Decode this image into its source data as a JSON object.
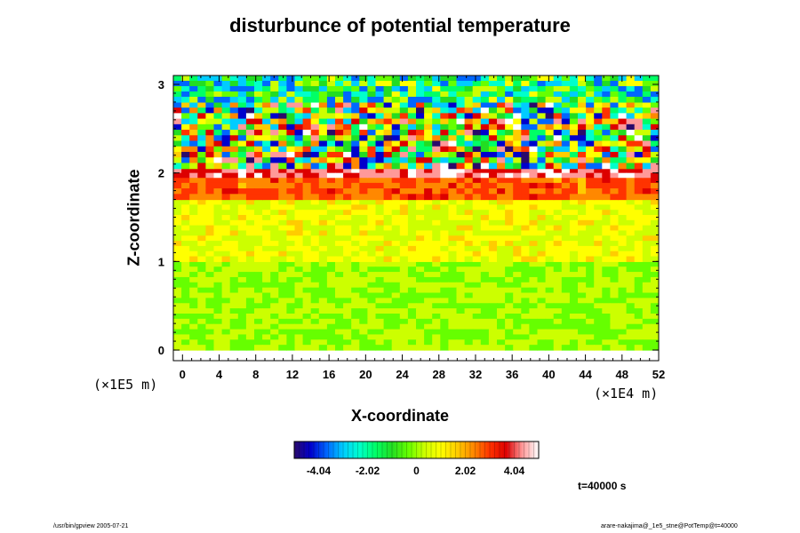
{
  "chart_data": {
    "type": "heatmap",
    "title": "disturbunce of potential temperature",
    "xlabel": "X-coordinate",
    "ylabel": "Z-coordinate",
    "x_unit": "(×1E4 m)",
    "y_unit": "(×1E5 m)",
    "x_ticks": [
      "0",
      "4",
      "8",
      "12",
      "16",
      "20",
      "24",
      "28",
      "32",
      "36",
      "40",
      "44",
      "48",
      "52"
    ],
    "y_ticks": [
      "0",
      "1",
      "2",
      "3"
    ],
    "xlim": [
      -1,
      52
    ],
    "ylim": [
      -0.12,
      3.1
    ],
    "colorbar": {
      "ticks": [
        "-4.04",
        "-2.02",
        "0",
        "2.02",
        "4.04"
      ],
      "range": [
        -5.05,
        5.05
      ],
      "colors": [
        "#2a0a6a",
        "#0000cc",
        "#0066ff",
        "#00ccff",
        "#00ffcc",
        "#00ff66",
        "#22dd22",
        "#66ff00",
        "#ccff00",
        "#ffff00",
        "#ffcc00",
        "#ff8800",
        "#ff3300",
        "#dd0000",
        "#ff9999",
        "#ffffff"
      ]
    },
    "field_description": {
      "layers": [
        {
          "z_range": [
            0,
            1.0
          ],
          "value_range": [
            -0.5,
            0.5
          ]
        },
        {
          "z_range": [
            1.0,
            1.7
          ],
          "value_range": [
            0.0,
            1.5
          ]
        },
        {
          "z_range": [
            1.7,
            1.95
          ],
          "value_range": [
            2.0,
            3.5
          ]
        },
        {
          "z_range": [
            1.95,
            2.05
          ],
          "value_range": [
            3.5,
            5.0
          ]
        },
        {
          "z_range": [
            2.05,
            2.8
          ],
          "value_range": [
            -5.0,
            5.0
          ]
        },
        {
          "z_range": [
            2.8,
            3.1
          ],
          "value_range": [
            -4.0,
            1.0
          ]
        }
      ]
    }
  },
  "annotations": {
    "time": "t=40000 s",
    "footer_left": "/usr/bin/gpview 2005-07-21",
    "footer_right": "arare-nakajima@_1e5_stne@PotTemp@t=40000"
  }
}
